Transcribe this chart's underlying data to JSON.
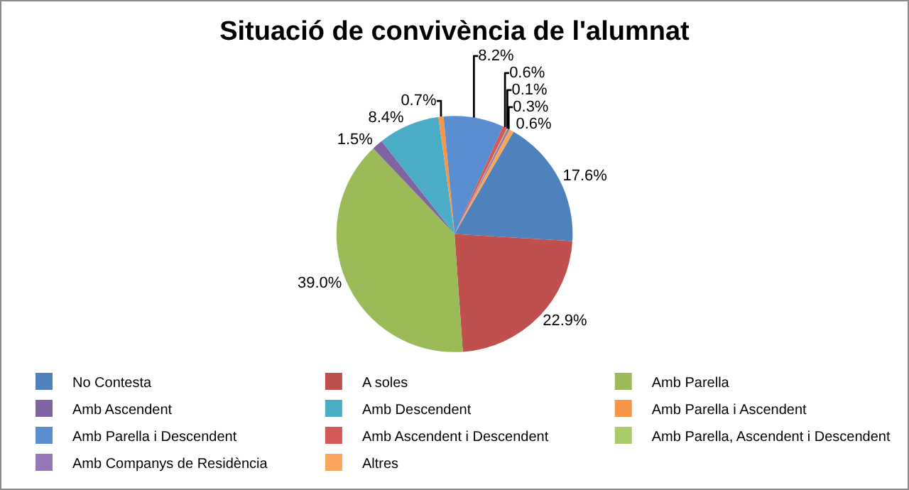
{
  "chart_data": {
    "type": "pie",
    "title": "Situació de convivència de l'alumnat",
    "categories": [
      "No Contesta",
      "A soles",
      "Amb Parella",
      "Amb Ascendent",
      "Amb Descendent",
      "Amb Parella i Ascendent",
      "Amb Parella i Descendent",
      "Amb Ascendent i Descendent",
      "Amb Parella, Ascendent i Descendent",
      "Amb Companys de Residència",
      "Altres"
    ],
    "values": [
      17.6,
      22.9,
      39.0,
      1.5,
      8.4,
      0.7,
      8.2,
      0.6,
      0.1,
      0.3,
      0.6
    ],
    "value_labels": [
      "17.6%",
      "22.9%",
      "39.0%",
      "1.5%",
      "8.4%",
      "0.7%",
      "8.2%",
      "0.6%",
      "0.1%",
      "0.3%",
      "0.6%"
    ],
    "colors": [
      "#4f81bd",
      "#c0504d",
      "#9bbb59",
      "#8064a2",
      "#4bacc6",
      "#f79646",
      "#5a8ed0",
      "#d45a57",
      "#a9cb6a",
      "#9478b6",
      "#f9a65a"
    ],
    "legend": "bottom"
  }
}
